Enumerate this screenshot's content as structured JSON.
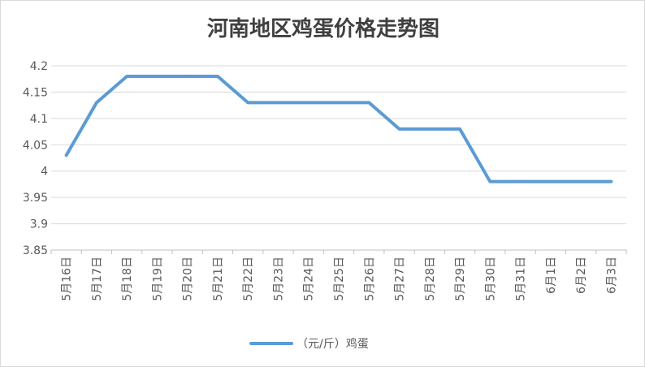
{
  "chart_data": {
    "type": "line",
    "title": "河南地区鸡蛋价格走势图",
    "categories": [
      "5月16日",
      "5月17日",
      "5月18日",
      "5月19日",
      "5月20日",
      "5月21日",
      "5月22日",
      "5月23日",
      "5月24日",
      "5月25日",
      "5月26日",
      "5月27日",
      "5月28日",
      "5月29日",
      "5月30日",
      "5月31日",
      "6月1日",
      "6月2日",
      "6月3日"
    ],
    "series": [
      {
        "name": "（元/斤）鸡蛋",
        "color": "#5b9bd5",
        "values": [
          4.03,
          4.13,
          4.18,
          4.18,
          4.18,
          4.18,
          4.13,
          4.13,
          4.13,
          4.13,
          4.13,
          4.08,
          4.08,
          4.08,
          3.98,
          3.98,
          3.98,
          3.98,
          3.98
        ]
      }
    ],
    "y_ticks": [
      "3.85",
      "3.9",
      "3.95",
      "4",
      "4.05",
      "4.1",
      "4.15",
      "4.2"
    ],
    "ylim": [
      3.85,
      4.2
    ],
    "grid": true,
    "legend": "bottom"
  }
}
